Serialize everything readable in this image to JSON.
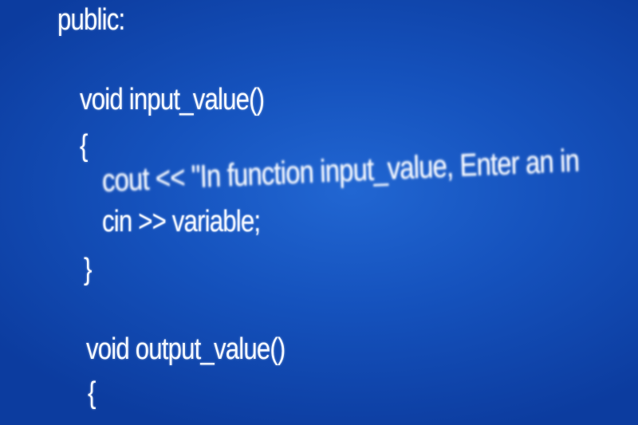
{
  "code": {
    "lines": [
      "public:",
      "void input_value()",
      "{",
      "cout << \"In function input_value, Enter an in",
      "cin >> variable;",
      "}",
      "void output_value()",
      "{"
    ]
  }
}
